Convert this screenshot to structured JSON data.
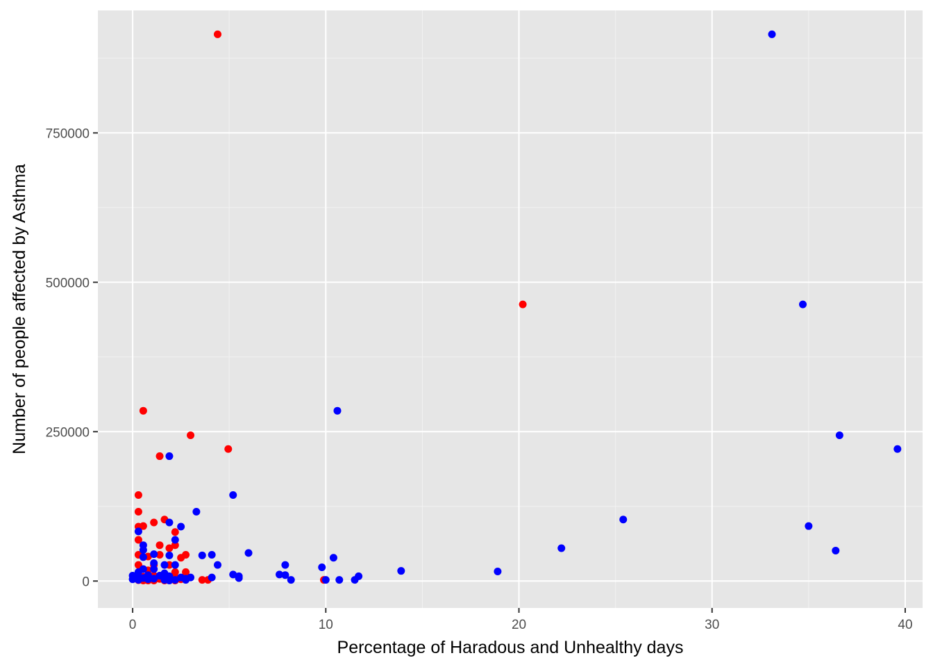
{
  "chart_data": {
    "type": "scatter",
    "xlabel": "Percentage of Haradous and Unhealthy days",
    "ylabel": "Number of people affected by Asthma",
    "xlim": [
      -1.8,
      40.9
    ],
    "ylim": [
      -45000,
      955000
    ],
    "x_ticks": [
      0,
      10,
      20,
      30,
      40
    ],
    "x_tick_labels": [
      "0",
      "10",
      "20",
      "30",
      "40"
    ],
    "y_ticks": [
      0,
      250000,
      500000,
      750000
    ],
    "y_tick_labels": [
      "0",
      "250000",
      "500000",
      "750000"
    ],
    "grid": true,
    "legend": "none",
    "colors": {
      "panel": "#e6e6e6",
      "grid_major": "#ffffff",
      "grid_minor": "#f2f2f2",
      "tick": "#333333",
      "series_red": "#ff0000",
      "series_blue": "#0000ff"
    },
    "series": [
      {
        "color": "#ff0000",
        "points": [
          [
            4.4,
            915000
          ],
          [
            20.2,
            463000
          ],
          [
            0.55,
            285000
          ],
          [
            3.0,
            244000
          ],
          [
            4.95,
            221000
          ],
          [
            1.4,
            209000
          ],
          [
            0.3,
            144000
          ],
          [
            0.3,
            116000
          ],
          [
            1.65,
            103000
          ],
          [
            1.1,
            98000
          ],
          [
            0.55,
            92000
          ],
          [
            0.3,
            91000
          ],
          [
            2.2,
            82000
          ],
          [
            0.3,
            69000
          ],
          [
            1.4,
            60000
          ],
          [
            2.2,
            60000
          ],
          [
            1.9,
            55000
          ],
          [
            0.3,
            44000
          ],
          [
            1.4,
            44000
          ],
          [
            2.75,
            44000
          ],
          [
            0.8,
            41000
          ],
          [
            2.5,
            39000
          ],
          [
            0.3,
            27000
          ],
          [
            1.1,
            27000
          ],
          [
            1.9,
            27000
          ],
          [
            0.55,
            20000
          ],
          [
            0.8,
            18000
          ],
          [
            2.2,
            15000
          ],
          [
            2.75,
            15000
          ],
          [
            0.3,
            10000
          ],
          [
            1.1,
            9000
          ],
          [
            1.65,
            8000
          ],
          [
            0.55,
            7000
          ],
          [
            2.2,
            6000
          ],
          [
            0.8,
            4000
          ],
          [
            1.4,
            3500
          ],
          [
            2.5,
            3000
          ],
          [
            3.6,
            2000
          ],
          [
            3.9,
            2000
          ],
          [
            9.9,
            2000
          ],
          [
            0.3,
            1500
          ],
          [
            0.55,
            1000
          ],
          [
            0.8,
            1000
          ],
          [
            1.1,
            1000
          ],
          [
            1.65,
            1000
          ],
          [
            2.2,
            1000
          ]
        ]
      },
      {
        "color": "#0000ff",
        "points": [
          [
            33.1,
            915000
          ],
          [
            34.7,
            463000
          ],
          [
            10.6,
            285000
          ],
          [
            36.6,
            244000
          ],
          [
            39.6,
            221000
          ],
          [
            1.9,
            209000
          ],
          [
            5.2,
            144000
          ],
          [
            3.3,
            116000
          ],
          [
            25.4,
            103000
          ],
          [
            1.9,
            98000
          ],
          [
            35.0,
            92000
          ],
          [
            2.5,
            91000
          ],
          [
            0.3,
            83000
          ],
          [
            2.2,
            69000
          ],
          [
            0.55,
            60000
          ],
          [
            22.2,
            55000
          ],
          [
            0.55,
            52000
          ],
          [
            36.4,
            51000
          ],
          [
            6.0,
            47000
          ],
          [
            1.1,
            45000
          ],
          [
            4.1,
            44000
          ],
          [
            3.6,
            43000
          ],
          [
            1.9,
            43000
          ],
          [
            0.55,
            40000
          ],
          [
            10.4,
            39000
          ],
          [
            1.1,
            30000
          ],
          [
            7.9,
            27000
          ],
          [
            4.4,
            27000
          ],
          [
            1.65,
            27000
          ],
          [
            2.2,
            27000
          ],
          [
            9.8,
            23000
          ],
          [
            1.1,
            20000
          ],
          [
            0.55,
            20000
          ],
          [
            13.9,
            17000
          ],
          [
            18.9,
            16000
          ],
          [
            0.3,
            15000
          ],
          [
            1.65,
            13000
          ],
          [
            7.6,
            11000
          ],
          [
            5.2,
            11000
          ],
          [
            7.9,
            10000
          ],
          [
            0.8,
            10000
          ],
          [
            0.0,
            9000
          ],
          [
            1.4,
            9000
          ],
          [
            11.7,
            8000
          ],
          [
            5.5,
            8000
          ],
          [
            1.9,
            8000
          ],
          [
            0.3,
            7000
          ],
          [
            2.5,
            6000
          ],
          [
            4.1,
            6000
          ],
          [
            3.0,
            6000
          ],
          [
            5.5,
            5000
          ],
          [
            0.55,
            5000
          ],
          [
            1.1,
            4000
          ],
          [
            2.75,
            4000
          ],
          [
            0.0,
            3000
          ],
          [
            0.8,
            3000
          ],
          [
            8.2,
            2000
          ],
          [
            10.0,
            2000
          ],
          [
            10.7,
            2000
          ],
          [
            11.5,
            2000
          ],
          [
            1.65,
            2000
          ],
          [
            2.2,
            2000
          ],
          [
            2.75,
            2000
          ],
          [
            0.3,
            2000
          ],
          [
            1.9,
            1000
          ]
        ]
      }
    ]
  }
}
